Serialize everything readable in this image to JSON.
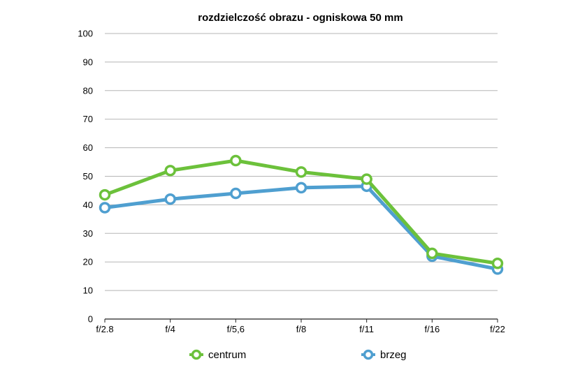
{
  "chart_data": {
    "type": "line",
    "title": "rozdzielczość obrazu - ogniskowa 50 mm",
    "xlabel": "",
    "ylabel": "",
    "categories": [
      "f/2.8",
      "f/4",
      "f/5,6",
      "f/8",
      "f/11",
      "f/16",
      "f/22"
    ],
    "ylim": [
      0,
      100
    ],
    "yticks": [
      "0",
      "10",
      "20",
      "30",
      "40",
      "50",
      "60",
      "70",
      "80",
      "90",
      "100"
    ],
    "grid": true,
    "legend_position": "bottom",
    "series": [
      {
        "name": "centrum",
        "color": "#6cc13b",
        "values": [
          43.5,
          52,
          55.5,
          51.5,
          49,
          23,
          19.5
        ]
      },
      {
        "name": "brzeg",
        "color": "#4f9fd0",
        "values": [
          39,
          42,
          44,
          46,
          46.5,
          22,
          17.5
        ]
      }
    ]
  }
}
